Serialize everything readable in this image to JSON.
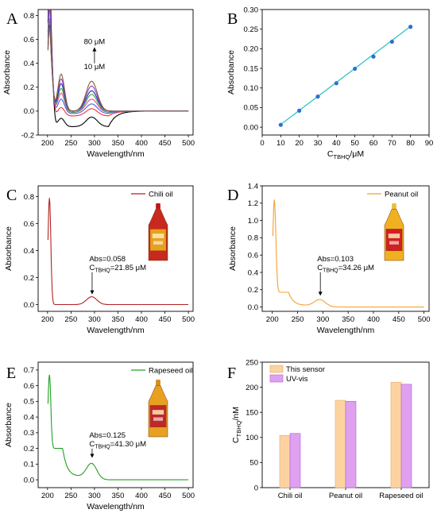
{
  "chart_data": [
    {
      "panel": "A",
      "type": "line",
      "xlabel": "Wavelength/nm",
      "ylabel": "Absorbance",
      "xlim": [
        180,
        510
      ],
      "ylim": [
        -0.2,
        0.85
      ],
      "xticks": [
        200,
        250,
        300,
        350,
        400,
        450,
        500
      ],
      "yticks": [
        -0.2,
        0.0,
        0.2,
        0.4,
        0.6,
        0.8
      ],
      "tick_decimals": 1,
      "annotations": {
        "top": "80 μM",
        "bottom": "10 μM"
      },
      "series": [
        {
          "color": "#000000",
          "values": {
            "min_abs": -0.13,
            "peak230": -0.06,
            "peak295": -0.05,
            "max_abs": 0.78
          }
        },
        {
          "color": "#ff2a2a",
          "values": {
            "min_abs": -0.04,
            "peak230": 0.03,
            "peak295": 0.02,
            "max_abs": 0.7
          }
        },
        {
          "color": "#4060ff",
          "values": {
            "min_abs": -0.02,
            "peak230": 0.1,
            "peak295": 0.06,
            "max_abs": 0.66
          }
        },
        {
          "color": "#e05090",
          "values": {
            "min_abs": -0.01,
            "peak230": 0.15,
            "peak295": 0.1,
            "max_abs": 0.6
          }
        },
        {
          "color": "#40a040",
          "values": {
            "min_abs": -0.01,
            "peak230": 0.19,
            "peak295": 0.14,
            "max_abs": 0.58
          }
        },
        {
          "color": "#2020c0",
          "values": {
            "min_abs": 0.0,
            "peak230": 0.23,
            "peak295": 0.17,
            "max_abs": 0.56
          }
        },
        {
          "color": "#9040c0",
          "values": {
            "min_abs": 0.0,
            "peak230": 0.27,
            "peak295": 0.21,
            "max_abs": 0.55
          }
        },
        {
          "color": "#806040",
          "values": {
            "min_abs": 0.0,
            "peak230": 0.31,
            "peak295": 0.25,
            "max_abs": 0.54
          }
        }
      ]
    },
    {
      "panel": "B",
      "type": "scatter",
      "xlabel": "C",
      "xlabel_sub": "TBHQ",
      "xlabel_unit": "/μM",
      "ylabel": "Absorbance",
      "xlim": [
        0,
        90
      ],
      "ylim": [
        -0.02,
        0.3
      ],
      "xticks": [
        0,
        10,
        20,
        30,
        40,
        50,
        60,
        70,
        80,
        90
      ],
      "yticks": [
        0.0,
        0.05,
        0.1,
        0.15,
        0.2,
        0.25,
        0.3
      ],
      "tick_decimals": 2,
      "x": [
        10,
        20,
        30,
        40,
        50,
        60,
        70,
        80
      ],
      "y": [
        0.006,
        0.042,
        0.078,
        0.112,
        0.149,
        0.18,
        0.218,
        0.256
      ],
      "fit": {
        "x": [
          10,
          80
        ],
        "y": [
          0.007,
          0.257
        ]
      },
      "point_color": "#2d6fd6",
      "line_color": "#20c0c0"
    },
    {
      "panel": "C",
      "type": "line",
      "xlabel": "Wavelength/nm",
      "ylabel": "Absorbance",
      "xlim": [
        180,
        510
      ],
      "ylim": [
        -0.05,
        0.88
      ],
      "xticks": [
        200,
        250,
        300,
        350,
        400,
        450,
        500
      ],
      "yticks": [
        0.0,
        0.2,
        0.4,
        0.6,
        0.8
      ],
      "tick_decimals": 1,
      "legend": "Chili oil",
      "color": "#b22222",
      "profile": {
        "max_abs": 0.79,
        "peak230": 0.0,
        "peak295": 0.058,
        "tail": 0.0
      },
      "annotation": {
        "abs": "Abs=0.058",
        "c": "C",
        "c_sub": "TBHQ",
        "c_val": "=21.85 μM"
      },
      "bottle": {
        "body": "#c8281e",
        "label": "#e8a020",
        "cap": "#c01818"
      }
    },
    {
      "panel": "D",
      "type": "line",
      "xlabel": "Wavelength/nm",
      "ylabel": "Absorbance",
      "xlim": [
        180,
        510
      ],
      "ylim": [
        -0.05,
        1.4
      ],
      "xticks": [
        200,
        250,
        300,
        350,
        400,
        450,
        500
      ],
      "yticks": [
        0.0,
        0.2,
        0.4,
        0.6,
        0.8,
        1.0,
        1.2,
        1.4
      ],
      "tick_decimals": 1,
      "legend": "Peanut oil",
      "color": "#f5a030",
      "profile": {
        "max_abs": 1.24,
        "peak230": 0.17,
        "peak295": 0.103,
        "tail": 0.0
      },
      "annotation": {
        "abs": "Abs=0.103",
        "c": "C",
        "c_sub": "TBHQ",
        "c_val": "=34.26 μM"
      },
      "bottle": {
        "body": "#f0b020",
        "label": "#d02020",
        "cap": "#e8c040"
      }
    },
    {
      "panel": "E",
      "type": "line",
      "xlabel": "Wavelength/nm",
      "ylabel": "Absorbance",
      "xlim": [
        180,
        510
      ],
      "ylim": [
        -0.05,
        0.75
      ],
      "xticks": [
        200,
        250,
        300,
        350,
        400,
        450,
        500
      ],
      "yticks": [
        0.0,
        0.1,
        0.2,
        0.3,
        0.4,
        0.5,
        0.6,
        0.7
      ],
      "tick_decimals": 1,
      "legend": "Rapeseed oil",
      "color": "#22a022",
      "profile": {
        "max_abs": 0.67,
        "peak230": 0.2,
        "peak295": 0.125,
        "tail": 0.0
      },
      "annotation": {
        "abs": "Abs=0.125",
        "c": "C",
        "c_sub": "TBHQ",
        "c_val": "=41.30 μM"
      },
      "bottle": {
        "body": "#e8a020",
        "label": "#c02828",
        "cap": "#d09020"
      }
    },
    {
      "panel": "F",
      "type": "bar",
      "ylabel": "C",
      "ylabel_sub": "TBHQ",
      "ylabel_unit": "/nM",
      "categories": [
        "Chili  oil",
        "Peanut oil",
        "Rapeseed oil"
      ],
      "ylim": [
        0,
        250
      ],
      "yticks": [
        0,
        50,
        100,
        150,
        200,
        250
      ],
      "tick_decimals": 0,
      "series": [
        {
          "name": "This sensor",
          "values": [
            104,
            174,
            210
          ],
          "color": "#fcd3a0",
          "edge": "#e8a868"
        },
        {
          "name": "UV-vis",
          "values": [
            108,
            172,
            206
          ],
          "color": "#e0a0f0",
          "edge": "#b060d0"
        }
      ]
    }
  ]
}
